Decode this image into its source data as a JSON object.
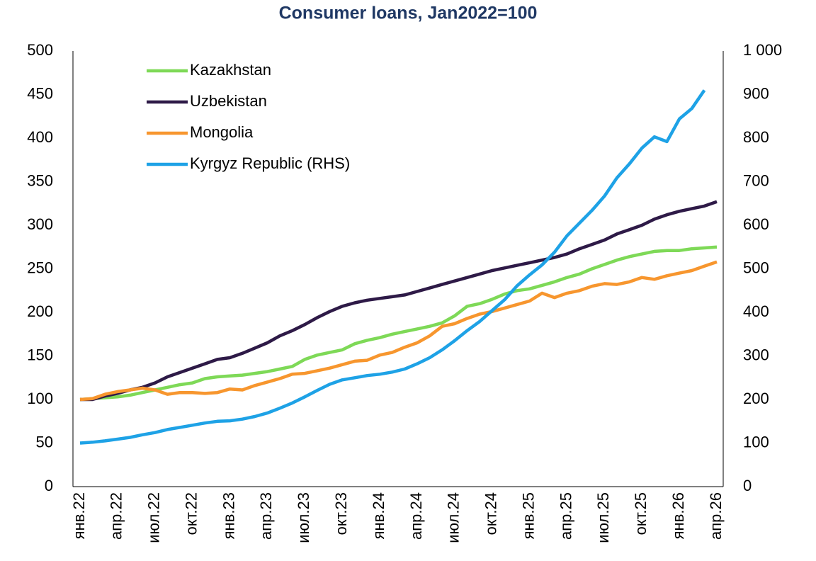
{
  "chart_data": {
    "type": "line",
    "title": "Consumer loans, Jan2022=100",
    "categories": [
      "янв.22",
      null,
      null,
      "апр.22",
      null,
      null,
      "июл.22",
      null,
      null,
      "окт.22",
      null,
      null,
      "янв.23",
      null,
      null,
      "апр.23",
      null,
      null,
      "июл.23",
      null,
      null,
      "окт.23",
      null,
      null,
      "янв.24",
      null,
      null,
      "апр.24",
      null,
      null,
      "июл.24",
      null,
      null,
      "окт.24",
      null,
      null,
      "янв.25",
      null,
      null,
      "апр.25",
      null,
      null,
      "июл.25",
      null,
      null,
      "окт.25",
      null,
      null,
      "янв.26",
      null,
      null,
      "апр.26"
    ],
    "series": [
      {
        "name": "Kazakhstan",
        "color": "#7ed957",
        "values": [
          100,
          101,
          102,
          103,
          105,
          108,
          111,
          114,
          117,
          119,
          124,
          126,
          127,
          128,
          130,
          132,
          135,
          138,
          146,
          151,
          154,
          157,
          164,
          168,
          171,
          175,
          178,
          181,
          184,
          188,
          196,
          207,
          210,
          215,
          221,
          225,
          227,
          231,
          235,
          240,
          244,
          250,
          255,
          260,
          264,
          267,
          270,
          271,
          271,
          273,
          274,
          275
        ]
      },
      {
        "name": "Uzbekistan",
        "color": "#2e1a47",
        "values": [
          100,
          100,
          104,
          107,
          111,
          114,
          119,
          126,
          131,
          136,
          141,
          146,
          148,
          153,
          159,
          165,
          173,
          179,
          186,
          194,
          201,
          207,
          211,
          214,
          216,
          218,
          220,
          224,
          228,
          232,
          236,
          240,
          244,
          248,
          251,
          254,
          257,
          260,
          263,
          267,
          273,
          278,
          283,
          290,
          295,
          300,
          307,
          312,
          316,
          319,
          322,
          327
        ]
      },
      {
        "name": "Mongolia",
        "color": "#f7962e",
        "values": [
          100,
          101,
          106,
          109,
          111,
          113,
          111,
          106,
          108,
          108,
          107,
          108,
          112,
          111,
          116,
          120,
          124,
          129,
          130,
          133,
          136,
          140,
          144,
          145,
          151,
          154,
          160,
          165,
          173,
          184,
          187,
          193,
          198,
          201,
          205,
          209,
          213,
          222,
          217,
          222,
          225,
          230,
          233,
          232,
          235,
          240,
          238,
          242,
          245,
          248,
          253,
          258
        ]
      },
      {
        "name": "Kyrgyz Republic (RHS)",
        "color": "#1ea2e6",
        "axis": "y2",
        "values": [
          100,
          102,
          105,
          109,
          113,
          119,
          124,
          131,
          136,
          141,
          146,
          150,
          151,
          155,
          161,
          169,
          180,
          192,
          206,
          221,
          235,
          245,
          250,
          255,
          258,
          263,
          270,
          282,
          296,
          314,
          335,
          358,
          379,
          404,
          429,
          461,
          486,
          509,
          538,
          576,
          605,
          634,
          667,
          709,
          741,
          777,
          803,
          792,
          844,
          868,
          910,
          null
        ]
      }
    ],
    "ylim": [
      0,
      500
    ],
    "yticks": [
      0,
      50,
      100,
      150,
      200,
      250,
      300,
      350,
      400,
      450,
      500
    ],
    "y2lim": [
      0,
      1000
    ],
    "y2ticks": [
      0,
      100,
      200,
      300,
      400,
      500,
      600,
      700,
      800,
      900,
      {
        "value": 1000,
        "label": "1 000"
      }
    ],
    "legend": "upper left"
  }
}
